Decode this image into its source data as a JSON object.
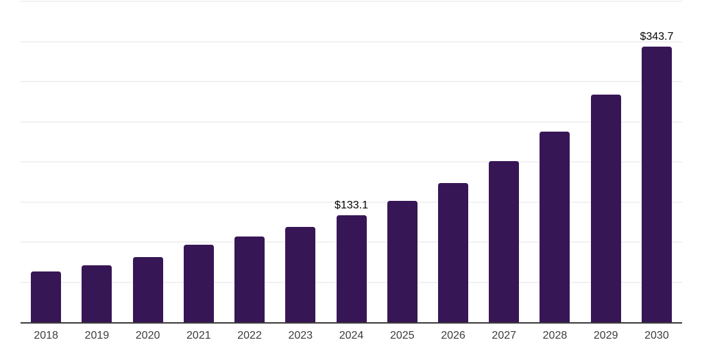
{
  "chart_data": {
    "type": "bar",
    "title": "",
    "xlabel": "",
    "ylabel": "",
    "categories": [
      "2018",
      "2019",
      "2020",
      "2021",
      "2022",
      "2023",
      "2024",
      "2025",
      "2026",
      "2027",
      "2028",
      "2029",
      "2030"
    ],
    "values": [
      63.5,
      70.8,
      81.5,
      96.4,
      107.0,
      119.0,
      133.1,
      151.7,
      173.3,
      200.9,
      237.4,
      283.5,
      343.7
    ],
    "data_labels": [
      "",
      "",
      "",
      "",
      "",
      "",
      "$133.1",
      "",
      "",
      "",
      "",
      "",
      "$343.7"
    ],
    "ylim": [
      0,
      400
    ],
    "gridline_step": 50,
    "grid": "horizontal",
    "y_axis_tick_labels_visible": false,
    "legend_position": "none"
  },
  "colors": {
    "background": "#ffffff",
    "bar": "#371656",
    "axis_line": "#3b3b3b",
    "gridline": "#f1f1f3",
    "tick_label": "#3c3c3c",
    "data_label": "#050505"
  }
}
